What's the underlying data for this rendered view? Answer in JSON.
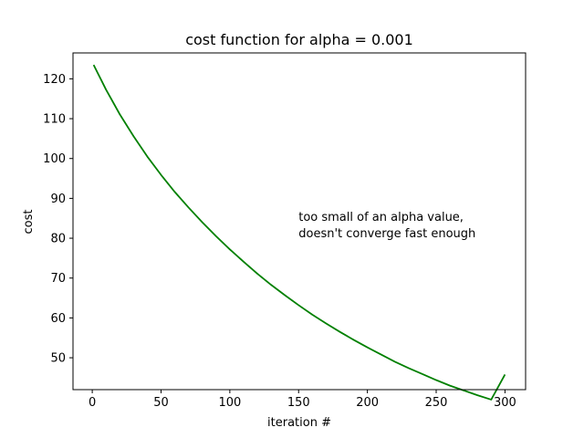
{
  "chart_data": {
    "type": "line",
    "title": "cost function for alpha = 0.001",
    "xlabel": "iteration #",
    "ylabel": "cost",
    "xlim": [
      -14,
      315
    ],
    "ylim": [
      42,
      126.5
    ],
    "xticks": [
      0,
      50,
      100,
      150,
      200,
      250,
      300
    ],
    "yticks": [
      50,
      60,
      70,
      80,
      90,
      100,
      110,
      120
    ],
    "grid": false,
    "series": [
      {
        "color": "#008000",
        "x": [
          1,
          10,
          20,
          30,
          40,
          50,
          60,
          70,
          80,
          90,
          100,
          110,
          120,
          130,
          140,
          150,
          160,
          170,
          180,
          190,
          200,
          210,
          220,
          230,
          240,
          250,
          260,
          270,
          280,
          290,
          300
        ],
        "values": [
          123.5,
          117.3,
          111.1,
          105.6,
          100.5,
          95.9,
          91.6,
          87.7,
          84.0,
          80.5,
          77.2,
          74.1,
          71.1,
          68.3,
          65.7,
          63.2,
          60.8,
          58.6,
          56.5,
          54.5,
          52.6,
          50.8,
          49.0,
          47.4,
          45.9,
          44.4,
          43.0,
          41.8,
          40.6,
          39.5,
          45.8
        ]
      }
    ],
    "annotation": {
      "lines": [
        "too small of an alpha value,",
        "doesn't converge fast enough"
      ],
      "x": 150,
      "y": 80
    }
  }
}
